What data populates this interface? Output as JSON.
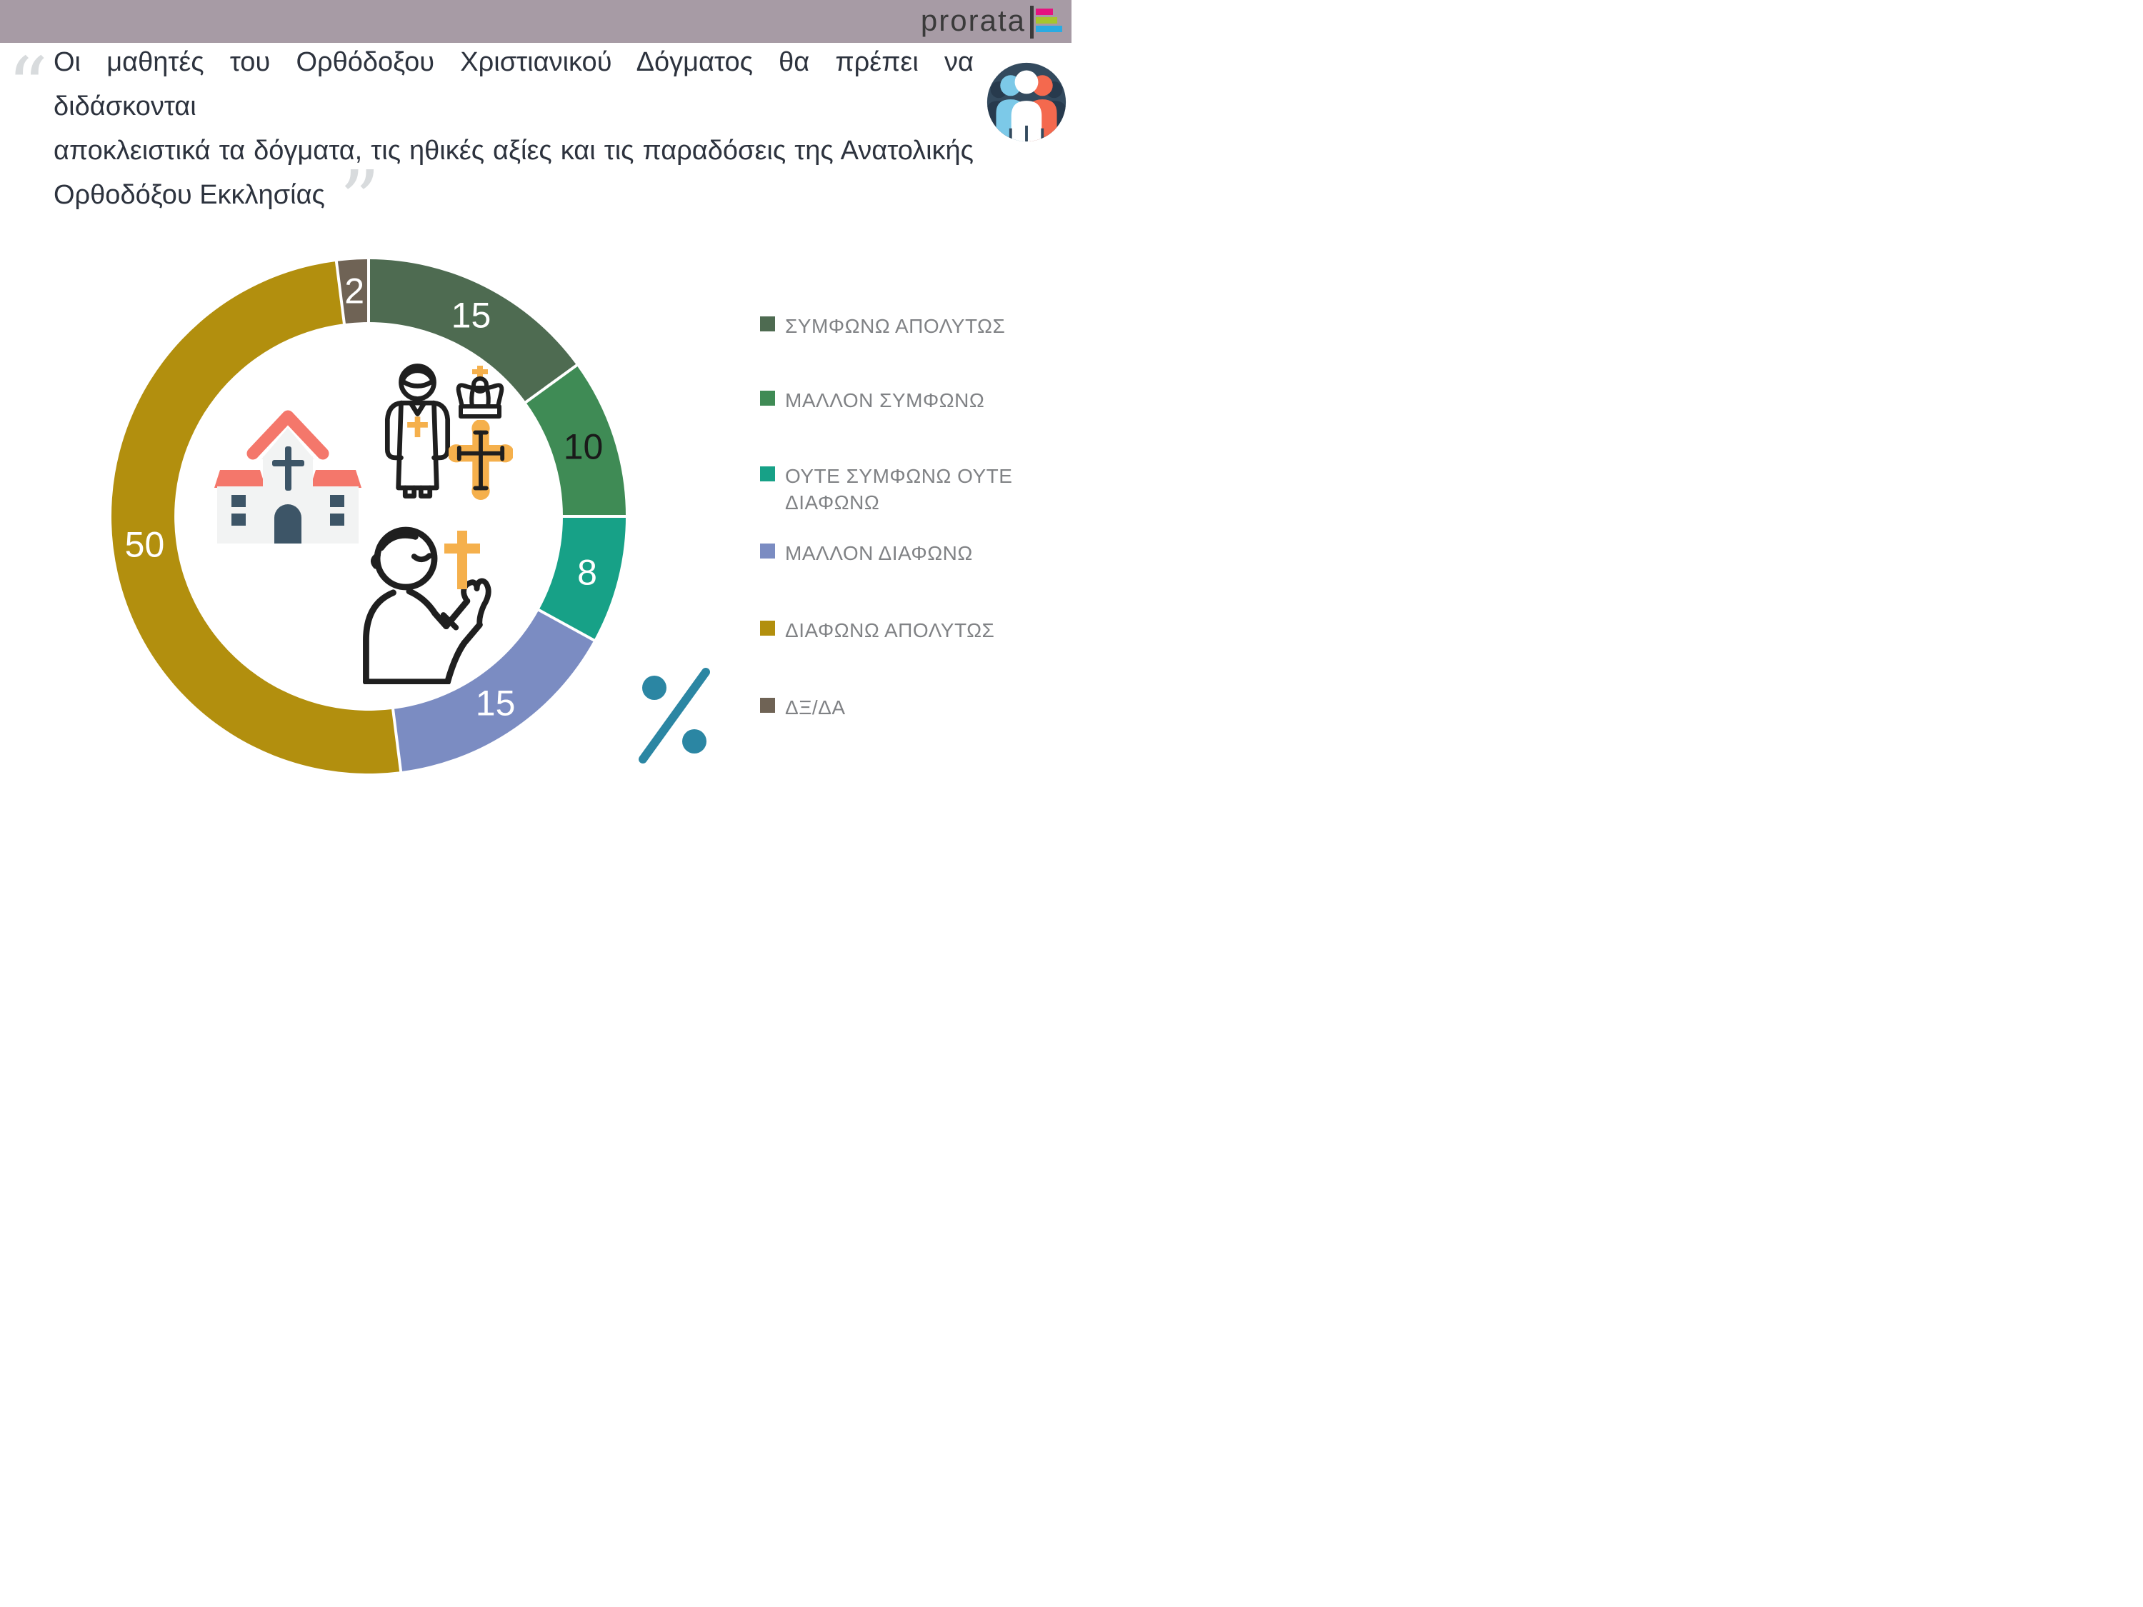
{
  "header": {
    "logo_text": "prorata"
  },
  "quote": {
    "open_mark": "“",
    "close_mark": "”",
    "lines": [
      "Οι μαθητές του Ορθόδοξου Χριστιανικού Δόγματος θα πρέπει να διδάσκονται",
      "αποκλειστικά τα δόγματα, τις ηθικές αξίες και τις παραδόσεις της Ανατολικής",
      "Ορθοδόξου Εκκλησίας"
    ]
  },
  "chart_data": {
    "type": "pie",
    "subtype": "donut",
    "unit": "%",
    "start_angle_deg": 0,
    "clockwise": true,
    "legend_position": "right",
    "percent_symbol": "%",
    "categories": [
      "ΣΥΜΦΩΝΩ ΑΠΟΛΥΤΩΣ",
      "ΜΑΛΛΟΝ ΣΥΜΦΩΝΩ",
      "ΟΥΤΕ ΣΥΜΦΩΝΩ ΟΥΤΕ ΔΙΑΦΩΝΩ",
      "ΜΑΛΛΟΝ ΔΙΑΦΩΝΩ",
      "ΔΙΑΦΩΝΩ ΑΠΟΛΥΤΩΣ",
      "ΔΞ/ΔΑ"
    ],
    "series": [
      {
        "label": "ΣΥΜΦΩΝΩ ΑΠΟΛΥΤΩΣ",
        "value": 15,
        "color": "#4e6b51",
        "label_color": "#ffffff"
      },
      {
        "label": "ΜΑΛΛΟΝ ΣΥΜΦΩΝΩ",
        "value": 10,
        "color": "#3f8b55",
        "label_color": "#1a1a1a"
      },
      {
        "label": "ΟΥΤΕ ΣΥΜΦΩΝΩ ΟΥΤΕ ΔΙΑΦΩΝΩ",
        "value": 8,
        "color": "#17a187",
        "label_color": "#ffffff"
      },
      {
        "label": "ΜΑΛΛΟΝ ΔΙΑΦΩΝΩ",
        "value": 15,
        "color": "#7b8cc2",
        "label_color": "#ffffff"
      },
      {
        "label": "ΔΙΑΦΩΝΩ ΑΠΟΛΥΤΩΣ",
        "value": 50,
        "color": "#b28f0e",
        "label_color": "#ffffff"
      },
      {
        "label": "ΔΞ/ΔΑ",
        "value": 2,
        "color": "#6f6355",
        "label_color": "#ffffff"
      }
    ],
    "center_icons": [
      "church-icon",
      "priest-icon",
      "crown-icon",
      "orthodox-cross-icon",
      "praying-person-icon"
    ]
  },
  "palette": {
    "header_bg": "#a79ba5",
    "quote_text": "#2d333e",
    "quote_mark": "#d8dbdd",
    "legend_text": "#808285",
    "logo_dark": "#3a3a3a",
    "logo_pink": "#e5127f",
    "logo_green": "#a6c52f",
    "logo_blue": "#2aabe2",
    "percent_teal": "#2b86a3",
    "amber": "#f5b04c",
    "outline": "#1f1f1f",
    "church_roof": "#f4776b",
    "church_wall": "#f2f3f3",
    "church_dark": "#3d5567",
    "badge_navy": "#334a5e",
    "badge_dark": "#273a4d",
    "badge_blue": "#7cc9e8",
    "badge_coral": "#f4694e",
    "separator": "#ffffff"
  }
}
